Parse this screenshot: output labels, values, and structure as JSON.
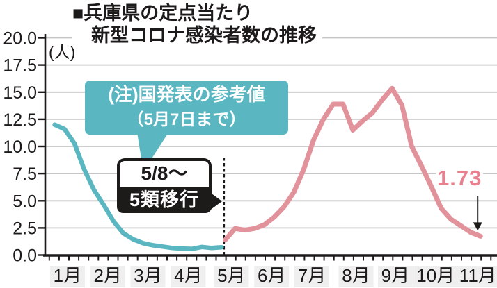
{
  "title": {
    "line1": "■兵庫県の定点当たり",
    "line2": "新型コロナ感染者数の推移"
  },
  "unit_label": "(人)",
  "annotations": {
    "note": {
      "line1": "(注)国発表の参考値",
      "line2": "（5月7日まで）"
    },
    "transition": {
      "line1": "5/8～",
      "line2": "5類移行"
    }
  },
  "colors": {
    "teal": "#5ab7c1",
    "pink": "#e2929b",
    "pink_label": "#e9808f",
    "ink": "#1d1a1a",
    "grid": "#c6c6c6",
    "chip": "#efefef"
  },
  "chart_data": {
    "type": "line",
    "title": "兵庫県の定点当たり新型コロナ感染者数の推移",
    "ylabel": "(人)",
    "ylim": [
      0,
      20
    ],
    "yticks": [
      "0.0",
      "2.5",
      "5.0",
      "7.5",
      "10.0",
      "12.5",
      "15.0",
      "17.5",
      "20.0"
    ],
    "months": [
      "1月",
      "2月",
      "3月",
      "4月",
      "5月",
      "6月",
      "7月",
      "8月",
      "9月",
      "10月",
      "11月"
    ],
    "month_week_centers": [
      2.2,
      6.3,
      10.4,
      14.5,
      18.9,
      23.0,
      27.1,
      31.6,
      35.6,
      39.7,
      44.0
    ],
    "event_line_week": 18.16,
    "event_label": "5/8～ 5類移行",
    "grid": true,
    "series": [
      {
        "name": "国発表の参考値（5月7日まで）",
        "color": "#5ab7c1",
        "week_start": 0.9,
        "values": [
          12.0,
          11.6,
          10.3,
          7.9,
          6.0,
          4.6,
          3.1,
          2.0,
          1.45,
          1.1,
          0.9,
          0.78,
          0.65,
          0.6,
          0.57,
          0.75,
          0.65,
          0.72
        ]
      },
      {
        "name": "5類移行後（5/8～）",
        "color": "#e2929b",
        "week_start": 18.28,
        "values": [
          1.4,
          2.45,
          2.3,
          2.45,
          2.8,
          3.5,
          4.45,
          5.8,
          7.9,
          10.6,
          12.5,
          13.9,
          13.9,
          11.5,
          12.35,
          13.1,
          14.3,
          15.35,
          13.8,
          10.0,
          8.2,
          6.3,
          4.3,
          3.3,
          2.7,
          2.1,
          1.73
        ]
      }
    ],
    "end_label": {
      "text": "1.73",
      "value": 1.73
    }
  }
}
